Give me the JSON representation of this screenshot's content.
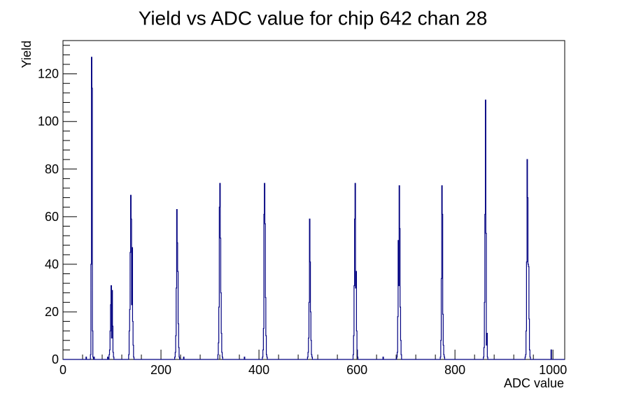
{
  "chart_data": {
    "type": "histogram",
    "title": "Yield vs ADC value for chip 642 chan 28",
    "xlabel": "ADC value",
    "ylabel": "Yield",
    "xlim": [
      0,
      1024
    ],
    "ylim": [
      0,
      134
    ],
    "x_ticks": [
      0,
      200,
      400,
      600,
      800,
      1000
    ],
    "y_ticks": [
      0,
      20,
      40,
      60,
      80,
      100,
      120
    ],
    "bin_width": 1,
    "line_color": "#000080",
    "bins": [
      [
        47,
        1
      ],
      [
        56,
        2
      ],
      [
        57,
        40
      ],
      [
        58,
        127
      ],
      [
        59,
        114
      ],
      [
        60,
        12
      ],
      [
        61,
        1
      ],
      [
        63,
        1
      ],
      [
        91,
        1
      ],
      [
        94,
        2
      ],
      [
        95,
        4
      ],
      [
        96,
        12
      ],
      [
        97,
        23
      ],
      [
        98,
        31
      ],
      [
        99,
        9
      ],
      [
        100,
        29
      ],
      [
        101,
        14
      ],
      [
        102,
        3
      ],
      [
        103,
        1
      ],
      [
        134,
        2
      ],
      [
        135,
        12
      ],
      [
        136,
        21
      ],
      [
        137,
        45
      ],
      [
        138,
        69
      ],
      [
        139,
        59
      ],
      [
        140,
        23
      ],
      [
        141,
        47
      ],
      [
        142,
        16
      ],
      [
        143,
        6
      ],
      [
        144,
        1
      ],
      [
        228,
        1
      ],
      [
        229,
        3
      ],
      [
        230,
        10
      ],
      [
        231,
        30
      ],
      [
        232,
        63
      ],
      [
        233,
        49
      ],
      [
        234,
        37
      ],
      [
        235,
        15
      ],
      [
        236,
        5
      ],
      [
        237,
        1
      ],
      [
        246,
        1
      ],
      [
        316,
        2
      ],
      [
        317,
        7
      ],
      [
        318,
        22
      ],
      [
        319,
        64
      ],
      [
        320,
        74
      ],
      [
        321,
        51
      ],
      [
        322,
        28
      ],
      [
        323,
        11
      ],
      [
        324,
        3
      ],
      [
        325,
        1
      ],
      [
        370,
        1
      ],
      [
        407,
        1
      ],
      [
        408,
        4
      ],
      [
        409,
        13
      ],
      [
        410,
        61
      ],
      [
        411,
        74
      ],
      [
        412,
        57
      ],
      [
        413,
        26
      ],
      [
        414,
        10
      ],
      [
        415,
        2
      ],
      [
        416,
        1
      ],
      [
        499,
        1
      ],
      [
        500,
        3
      ],
      [
        501,
        9
      ],
      [
        502,
        24
      ],
      [
        503,
        59
      ],
      [
        504,
        41
      ],
      [
        505,
        20
      ],
      [
        506,
        8
      ],
      [
        507,
        2
      ],
      [
        508,
        1
      ],
      [
        592,
        2
      ],
      [
        593,
        10
      ],
      [
        594,
        31
      ],
      [
        595,
        59
      ],
      [
        596,
        74
      ],
      [
        597,
        30
      ],
      [
        598,
        37
      ],
      [
        599,
        12
      ],
      [
        600,
        4
      ],
      [
        601,
        1
      ],
      [
        653,
        1
      ],
      [
        681,
        1
      ],
      [
        682,
        3
      ],
      [
        683,
        18
      ],
      [
        684,
        50
      ],
      [
        685,
        31
      ],
      [
        686,
        73
      ],
      [
        687,
        55
      ],
      [
        688,
        22
      ],
      [
        689,
        8
      ],
      [
        690,
        2
      ],
      [
        770,
        1
      ],
      [
        771,
        8
      ],
      [
        772,
        34
      ],
      [
        773,
        73
      ],
      [
        774,
        61
      ],
      [
        775,
        19
      ],
      [
        776,
        6
      ],
      [
        777,
        2
      ],
      [
        778,
        1
      ],
      [
        858,
        1
      ],
      [
        859,
        5
      ],
      [
        860,
        24
      ],
      [
        861,
        61
      ],
      [
        862,
        109
      ],
      [
        863,
        53
      ],
      [
        864,
        6
      ],
      [
        865,
        11
      ],
      [
        866,
        1
      ],
      [
        943,
        1
      ],
      [
        944,
        2
      ],
      [
        945,
        12
      ],
      [
        946,
        41
      ],
      [
        947,
        84
      ],
      [
        948,
        68
      ],
      [
        949,
        40
      ],
      [
        950,
        39
      ],
      [
        951,
        17
      ],
      [
        952,
        4
      ],
      [
        953,
        1
      ],
      [
        996,
        4
      ]
    ]
  }
}
